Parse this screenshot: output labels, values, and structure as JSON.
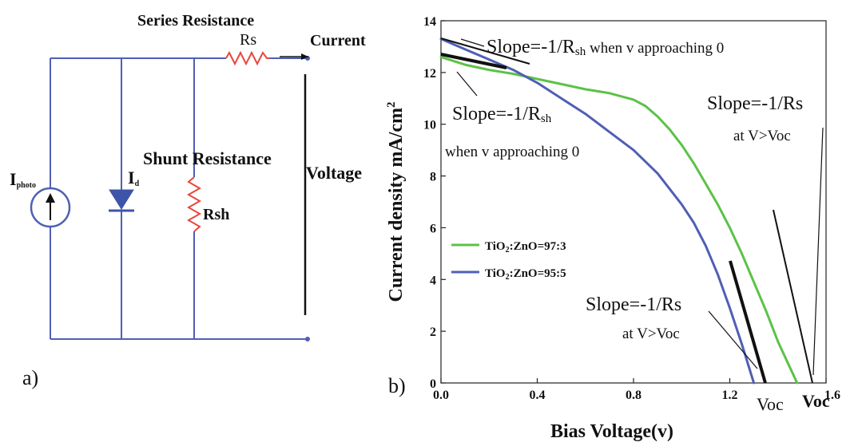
{
  "circuit": {
    "series_resistance_label": "Series Resistance",
    "rs_label": "Rs",
    "current_label": "Current",
    "shunt_resistance_label": "Shunt Resistance",
    "rsh_label": "Rsh",
    "voltage_label": "Voltage",
    "iphoto_main": "I",
    "iphoto_sub": "photo",
    "id_main": "I",
    "id_sub": "d",
    "panel_label": "a)",
    "wire_color": "#4f5fb5",
    "resistor_color": "#e8473d",
    "diode_color": "#3d55a8"
  },
  "chart_panel_label": "b)",
  "chart_data": {
    "type": "line",
    "xlabel": "Bias Voltage(v)",
    "ylabel": "Current density mA/cm²",
    "ylabel_main": "Current density mA/cm",
    "ylabel_sup": "2",
    "xlim": [
      0,
      1.6
    ],
    "ylim": [
      0,
      14
    ],
    "x_ticks": [
      0.0,
      0.4,
      0.8,
      1.2,
      1.6
    ],
    "x_tick_labels": [
      "0.0",
      "0.4",
      "0.8",
      "1.2",
      "1.6"
    ],
    "y_ticks": [
      0,
      2,
      4,
      6,
      8,
      10,
      12,
      14
    ],
    "y_tick_labels": [
      "0",
      "2",
      "4",
      "6",
      "8",
      "10",
      "12",
      "14"
    ],
    "legend_position": "center-left",
    "series": [
      {
        "name": "TiO₂:ZnO=97:3",
        "name_parts": [
          "TiO",
          "2",
          ":ZnO=97:3"
        ],
        "color": "#5cc247",
        "x": [
          0.0,
          0.1,
          0.2,
          0.3,
          0.4,
          0.5,
          0.6,
          0.7,
          0.8,
          0.85,
          0.9,
          0.95,
          1.0,
          1.05,
          1.1,
          1.15,
          1.2,
          1.25,
          1.3,
          1.35,
          1.4,
          1.44,
          1.47,
          1.48
        ],
        "y": [
          12.6,
          12.3,
          12.1,
          11.95,
          11.75,
          11.55,
          11.35,
          11.2,
          10.95,
          10.7,
          10.3,
          9.8,
          9.2,
          8.5,
          7.7,
          6.9,
          6.0,
          5.0,
          3.9,
          2.8,
          1.6,
          0.8,
          0.2,
          0.0
        ]
      },
      {
        "name": "TiO₂:ZnO=95:5",
        "name_parts": [
          "TiO",
          "2",
          ":ZnO=95:5"
        ],
        "color": "#4f5fb5",
        "x": [
          0.0,
          0.1,
          0.2,
          0.3,
          0.4,
          0.5,
          0.6,
          0.7,
          0.8,
          0.9,
          1.0,
          1.05,
          1.1,
          1.15,
          1.2,
          1.25,
          1.28,
          1.3
        ],
        "y": [
          13.3,
          12.9,
          12.5,
          12.1,
          11.6,
          11.0,
          10.4,
          9.7,
          9.0,
          8.1,
          6.9,
          6.2,
          5.3,
          4.2,
          2.9,
          1.5,
          0.6,
          0.0
        ]
      }
    ],
    "annotations": {
      "slope_rsh_top_main": "Slope=-1/R",
      "slope_rsh_top_sub": "sh",
      "slope_rsh_top_tail": " when v approaching 0",
      "slope_rsh_mid_main": "Slope=-1/R",
      "slope_rsh_mid_sub": "sh",
      "slope_rsh_mid_line2": "when v approaching 0",
      "slope_rs_right": "Slope=-1/Rs",
      "at_voc_right": "at V>Voc",
      "slope_rs_bottom": "Slope=-1/Rs",
      "at_voc_bottom": "at V>Voc",
      "voc_blue": "Voc",
      "voc_green": "Voc"
    }
  }
}
